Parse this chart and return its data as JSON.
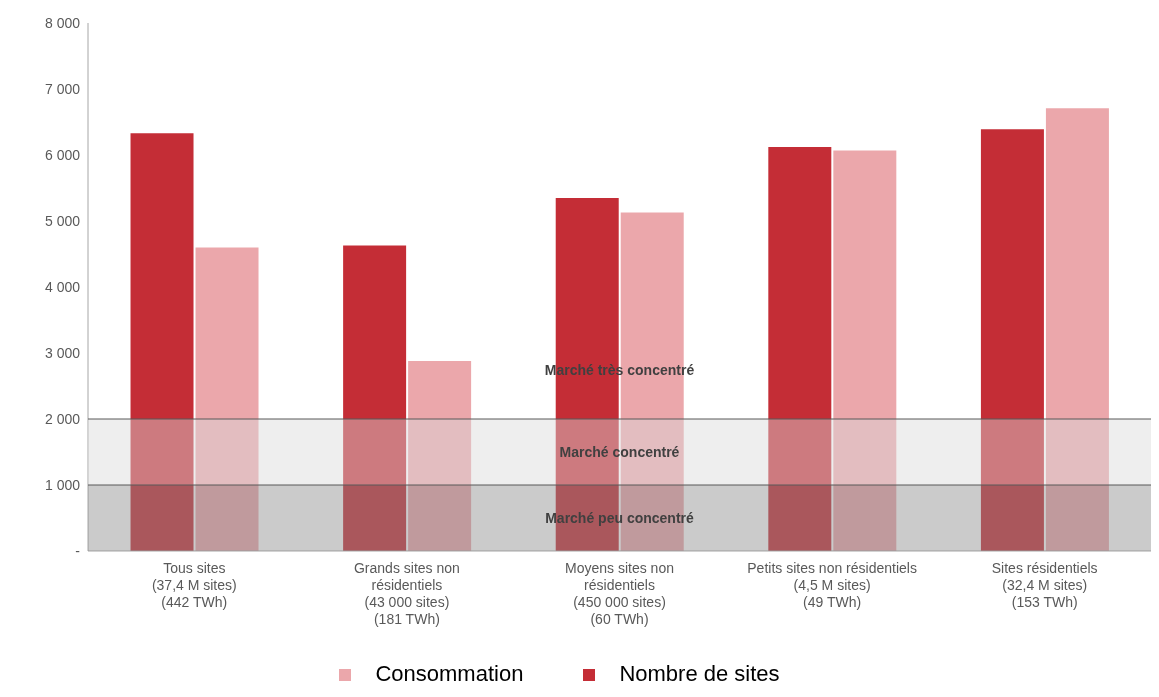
{
  "chart_data": {
    "type": "bar",
    "categories": [
      "Tous sites\n(37,4 M sites)\n(442 TWh)",
      "Grands sites non\nrésidentiels\n(43 000 sites)\n(181 TWh)",
      "Moyens sites non\nrésidentiels\n(450 000 sites)\n(60 TWh)",
      "Petits sites non résidentiels\n(4,5 M sites)\n(49 TWh)",
      "Sites résidentiels\n(32,4 M sites)\n(153 TWh)"
    ],
    "series": [
      {
        "name": "Nombre de sites",
        "color": "#c42d36",
        "values": [
          6330,
          4630,
          5350,
          6120,
          6390
        ]
      },
      {
        "name": "Consommation",
        "color": "#eba7ab",
        "values": [
          4600,
          2880,
          5130,
          6070,
          6710
        ]
      }
    ],
    "ylim": [
      0,
      8000
    ],
    "yticks": [
      {
        "value": 0,
        "label": "-"
      },
      {
        "value": 1000,
        "label": "1 000"
      },
      {
        "value": 2000,
        "label": "2 000"
      },
      {
        "value": 3000,
        "label": "3 000"
      },
      {
        "value": 4000,
        "label": "4 000"
      },
      {
        "value": 5000,
        "label": "5 000"
      },
      {
        "value": 6000,
        "label": "6 000"
      },
      {
        "value": 7000,
        "label": "7 000"
      },
      {
        "value": 8000,
        "label": "8 000"
      }
    ],
    "bands": [
      {
        "axis": "y",
        "from": 0,
        "to": 1000,
        "label": "Marché peu concentré",
        "color": "#8c8c8c"
      },
      {
        "axis": "y",
        "from": 1000,
        "to": 2000,
        "label": "Marché concentré",
        "color": "#d9d9d9"
      }
    ],
    "ref_lines": [
      {
        "axis": "y",
        "value": 1000,
        "color": "#595959"
      },
      {
        "axis": "y",
        "value": 2000,
        "color": "#595959"
      }
    ],
    "annotations": [
      "Marché très concentré"
    ],
    "grid": false,
    "legend": "bottom"
  }
}
